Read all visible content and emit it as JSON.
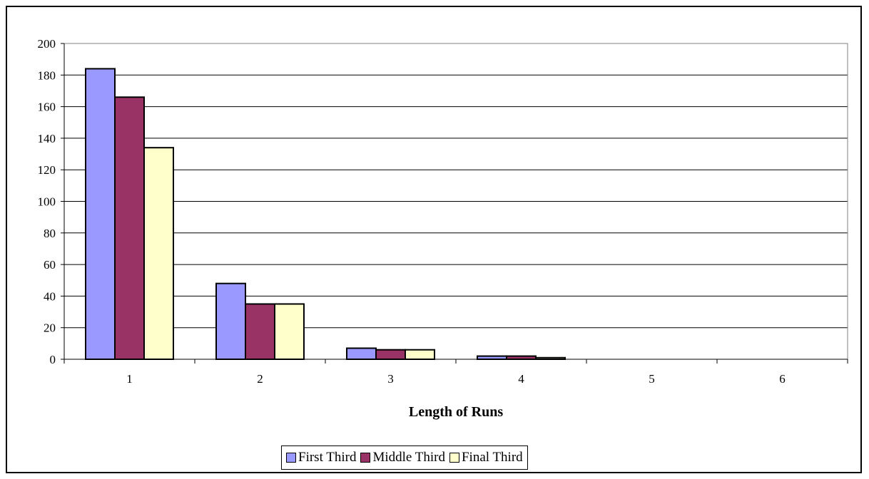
{
  "chart_data": {
    "type": "bar",
    "categories": [
      "1",
      "2",
      "3",
      "4",
      "5",
      "6"
    ],
    "series": [
      {
        "name": "First Third",
        "values": [
          184,
          48,
          7,
          2,
          0,
          0
        ],
        "color": "#9999FF"
      },
      {
        "name": "Middle Third",
        "values": [
          166,
          35,
          6,
          2,
          0,
          0
        ],
        "color": "#993366"
      },
      {
        "name": "Final Third",
        "values": [
          134,
          35,
          6,
          1,
          0,
          0
        ],
        "color": "#FFFFCC"
      }
    ],
    "title": "",
    "xlabel": "Length of Runs",
    "ylabel": "",
    "ylim": [
      0,
      200
    ],
    "yticks": [
      0,
      20,
      40,
      60,
      80,
      100,
      120,
      140,
      160,
      180,
      200
    ],
    "grid": true,
    "legend_position": "bottom"
  }
}
